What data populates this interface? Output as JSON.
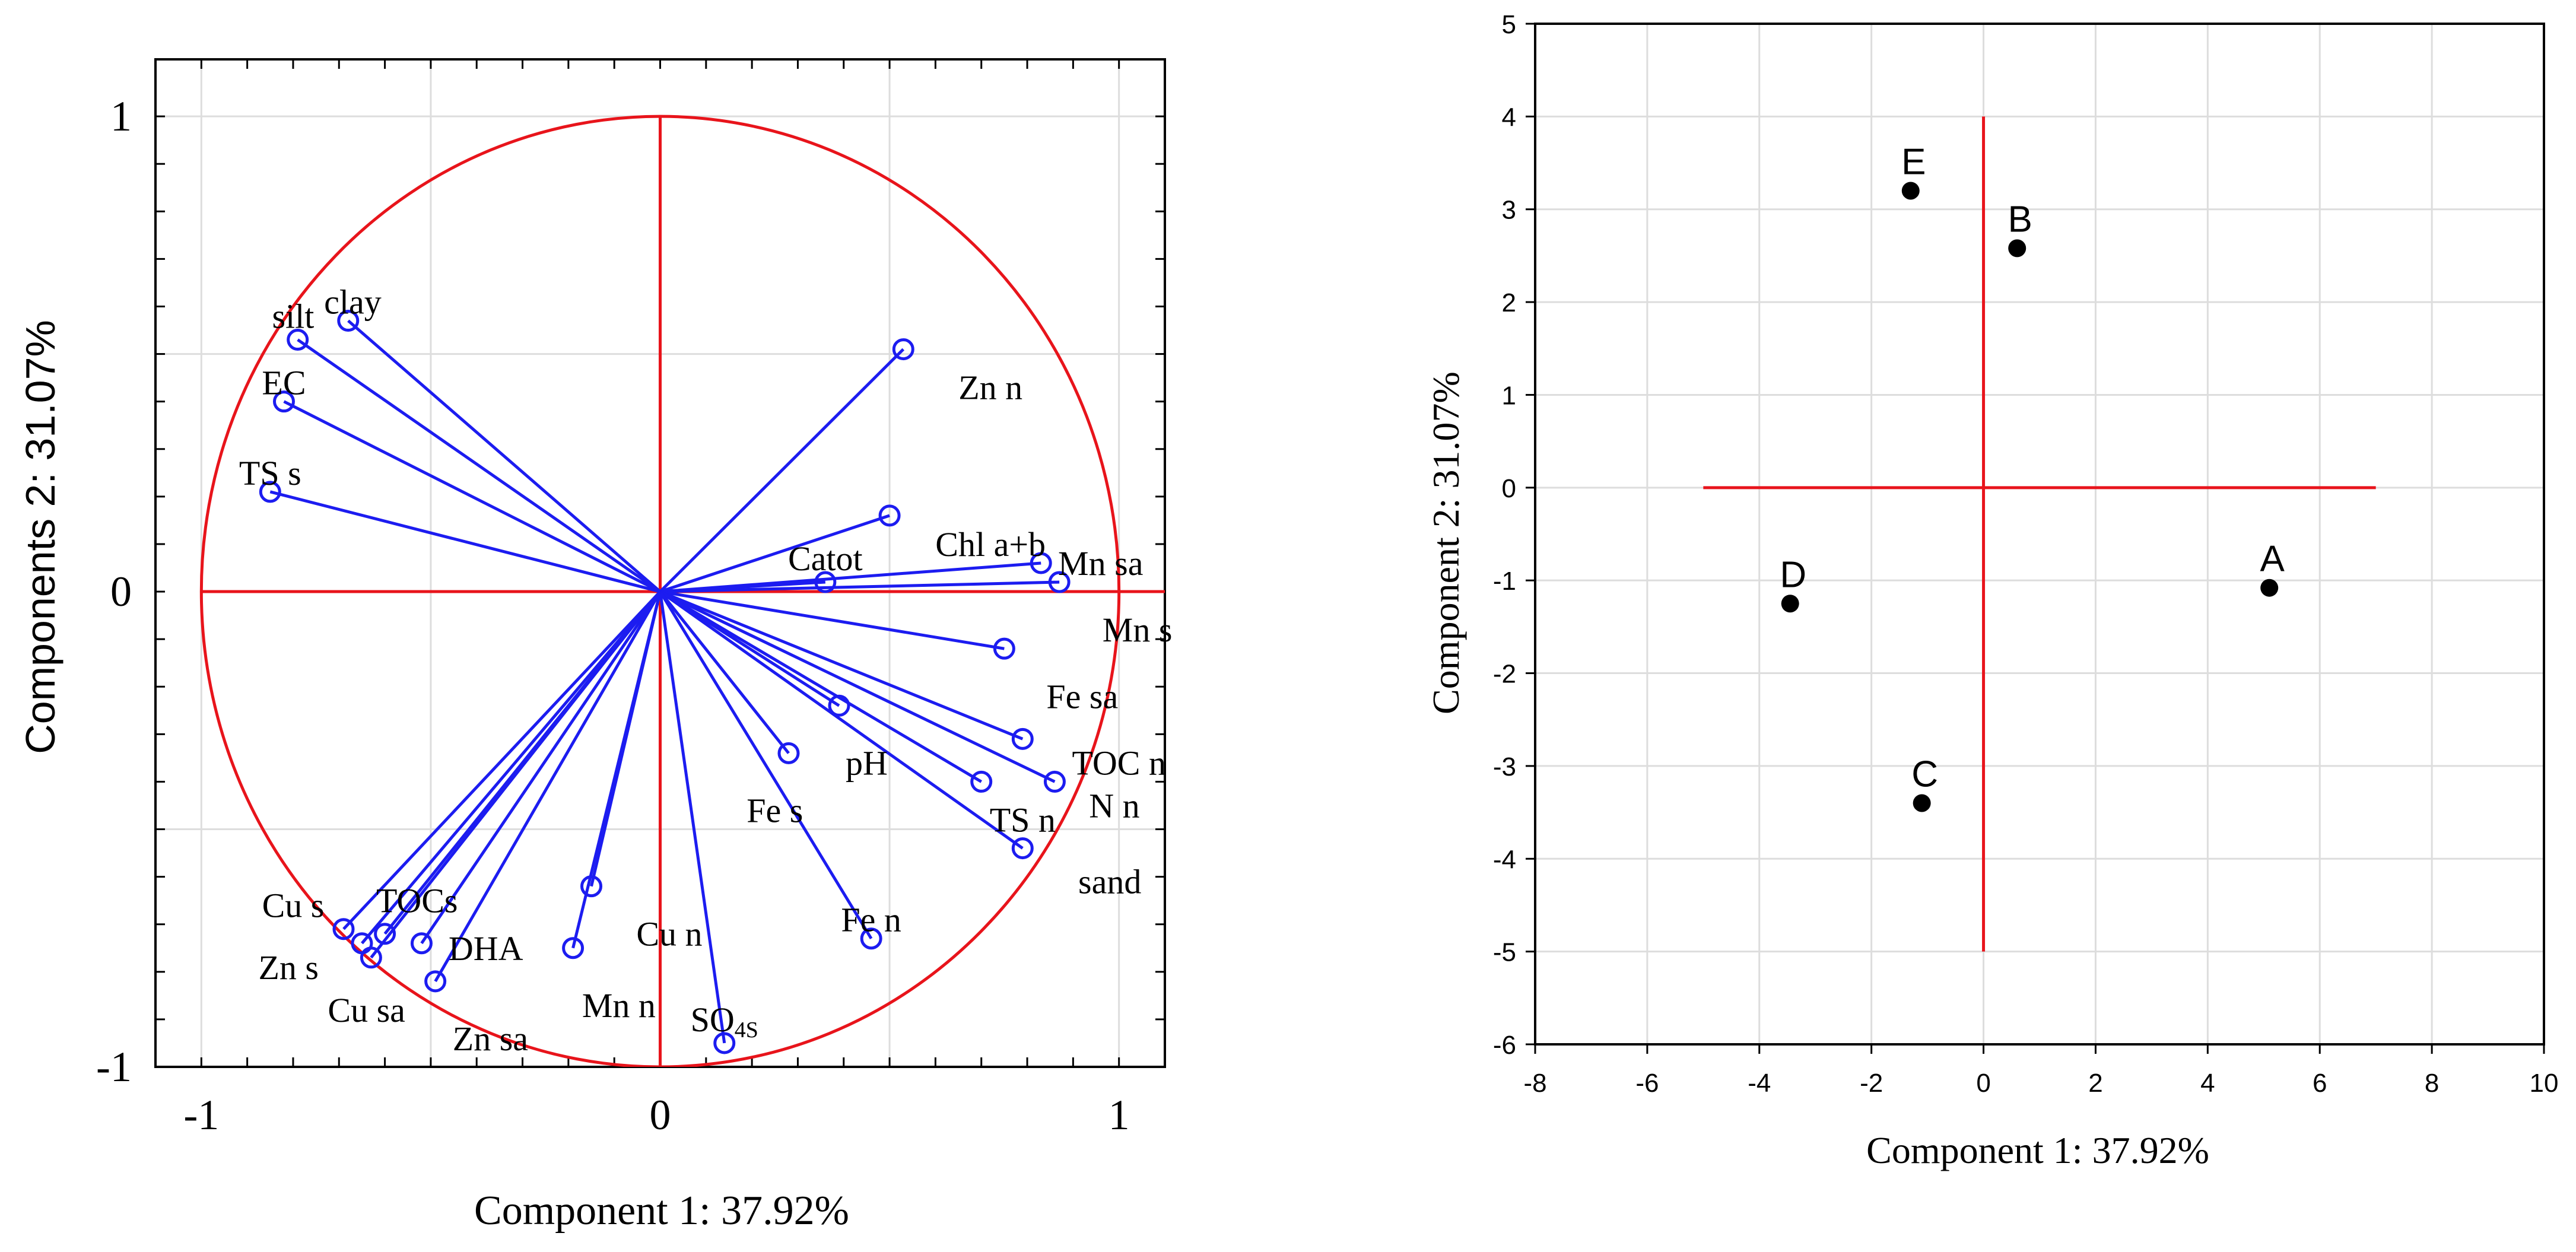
{
  "chart_data": [
    {
      "type": "scatter",
      "subtype": "pca-loadings-circle",
      "title": "",
      "xlabel": "Component 1: 37.92%",
      "ylabel": "Components 2: 31.07%",
      "xlim": [
        -1.1,
        1.1
      ],
      "ylim": [
        -1.0,
        1.12
      ],
      "xticks": [
        -1,
        0,
        1
      ],
      "yticks": [
        -1,
        0,
        1
      ],
      "xtick_labels": [
        "-1",
        "0",
        "1"
      ],
      "ytick_labels": [
        "-1",
        "0",
        "1"
      ],
      "grid": true,
      "colors": {
        "vector": "#1c1cf0",
        "circle": "#e8141b",
        "axes": "#e8141b",
        "grid": "#dddddd"
      },
      "loadings": [
        {
          "label": "clay",
          "x": -0.68,
          "y": 0.57,
          "lx": -0.67,
          "ly": 0.61
        },
        {
          "label": "silt",
          "x": -0.79,
          "y": 0.53,
          "lx": -0.8,
          "ly": 0.58
        },
        {
          "label": "EC",
          "x": -0.82,
          "y": 0.4,
          "lx": -0.82,
          "ly": 0.44
        },
        {
          "label": "TS s",
          "x": -0.85,
          "y": 0.21,
          "lx": -0.85,
          "ly": 0.25
        },
        {
          "label": "Zn n",
          "x": 0.53,
          "y": 0.51,
          "lx": 0.72,
          "ly": 0.43
        },
        {
          "label": "Catot",
          "x": 0.36,
          "y": 0.02,
          "lx": 0.36,
          "ly": 0.07
        },
        {
          "label": "Chl a+b",
          "x": 0.5,
          "y": 0.16,
          "lx": 0.72,
          "ly": 0.1
        },
        {
          "label": "Mn sa",
          "x": 0.83,
          "y": 0.06,
          "lx": 0.96,
          "ly": 0.06
        },
        {
          "label": "Mn s",
          "x": 0.87,
          "y": 0.02,
          "lx": 1.04,
          "ly": -0.08
        },
        {
          "label": "Fe sa",
          "x": 0.75,
          "y": -0.12,
          "lx": 0.92,
          "ly": -0.22
        },
        {
          "label": "TOC n",
          "x": 0.79,
          "y": -0.31,
          "lx": 1.0,
          "ly": -0.36
        },
        {
          "label": "N n",
          "x": 0.86,
          "y": -0.4,
          "lx": 0.99,
          "ly": -0.45
        },
        {
          "label": "TS n",
          "x": 0.7,
          "y": -0.4,
          "lx": 0.79,
          "ly": -0.48
        },
        {
          "label": "sand",
          "x": 0.79,
          "y": -0.54,
          "lx": 0.98,
          "ly": -0.61
        },
        {
          "label": "pH",
          "x": 0.39,
          "y": -0.24,
          "lx": 0.45,
          "ly": -0.36
        },
        {
          "label": "Fe s",
          "x": 0.28,
          "y": -0.34,
          "lx": 0.25,
          "ly": -0.46
        },
        {
          "label": "Fe n",
          "x": 0.46,
          "y": -0.73,
          "lx": 0.46,
          "ly": -0.69
        },
        {
          "label": "Cu n",
          "x": -0.15,
          "y": -0.62,
          "lx": 0.02,
          "ly": -0.72
        },
        {
          "label": "Mn n",
          "x": -0.19,
          "y": -0.75,
          "lx": -0.09,
          "ly": -0.87
        },
        {
          "label": "SO4S",
          "x": 0.14,
          "y": -0.95,
          "lx": 0.14,
          "ly": -0.9
        },
        {
          "label": "Cu s",
          "x": -0.69,
          "y": -0.71,
          "lx": -0.8,
          "ly": -0.66
        },
        {
          "label": "TOCs",
          "x": -0.6,
          "y": -0.72,
          "lx": -0.53,
          "ly": -0.65
        },
        {
          "label": "Zn s",
          "x": -0.65,
          "y": -0.74,
          "lx": -0.81,
          "ly": -0.79
        },
        {
          "label": "Cu sa",
          "x": -0.63,
          "y": -0.77,
          "lx": -0.64,
          "ly": -0.88
        },
        {
          "label": "DHA",
          "x": -0.52,
          "y": -0.74,
          "lx": -0.38,
          "ly": -0.75
        },
        {
          "label": "Zn sa",
          "x": -0.49,
          "y": -0.82,
          "lx": -0.37,
          "ly": -0.94
        }
      ]
    },
    {
      "type": "scatter",
      "title": "",
      "xlabel": "Component 1: 37.92%",
      "ylabel": "Component  2: 31.07%",
      "xlim": [
        -8,
        10
      ],
      "ylim": [
        -6,
        5
      ],
      "xticks": [
        -8,
        -6,
        -4,
        -2,
        0,
        2,
        4,
        6,
        8,
        10
      ],
      "yticks": [
        -6,
        -5,
        -4,
        -3,
        -2,
        -1,
        0,
        1,
        2,
        3,
        4,
        5
      ],
      "xtick_labels": [
        "-8",
        "-6",
        "-4",
        "-2",
        "0",
        "2",
        "4",
        "6",
        "8",
        "10"
      ],
      "ytick_labels": [
        "-6",
        "-5",
        "-4",
        "-3",
        "-2",
        "-1",
        "0",
        "1",
        "2",
        "3",
        "4",
        "5"
      ],
      "grid": true,
      "colors": {
        "point": "#000000",
        "axes": "#e8141b",
        "grid": "#dddddd"
      },
      "cross": {
        "h": [
          -5,
          7
        ],
        "v": [
          -5,
          4
        ]
      },
      "points": [
        {
          "label": "A",
          "x": 5.1,
          "y": -1.08
        },
        {
          "label": "B",
          "x": 0.6,
          "y": 2.58
        },
        {
          "label": "C",
          "x": -1.1,
          "y": -3.4
        },
        {
          "label": "D",
          "x": -3.45,
          "y": -1.25
        },
        {
          "label": "E",
          "x": -1.3,
          "y": 3.2
        }
      ]
    }
  ]
}
